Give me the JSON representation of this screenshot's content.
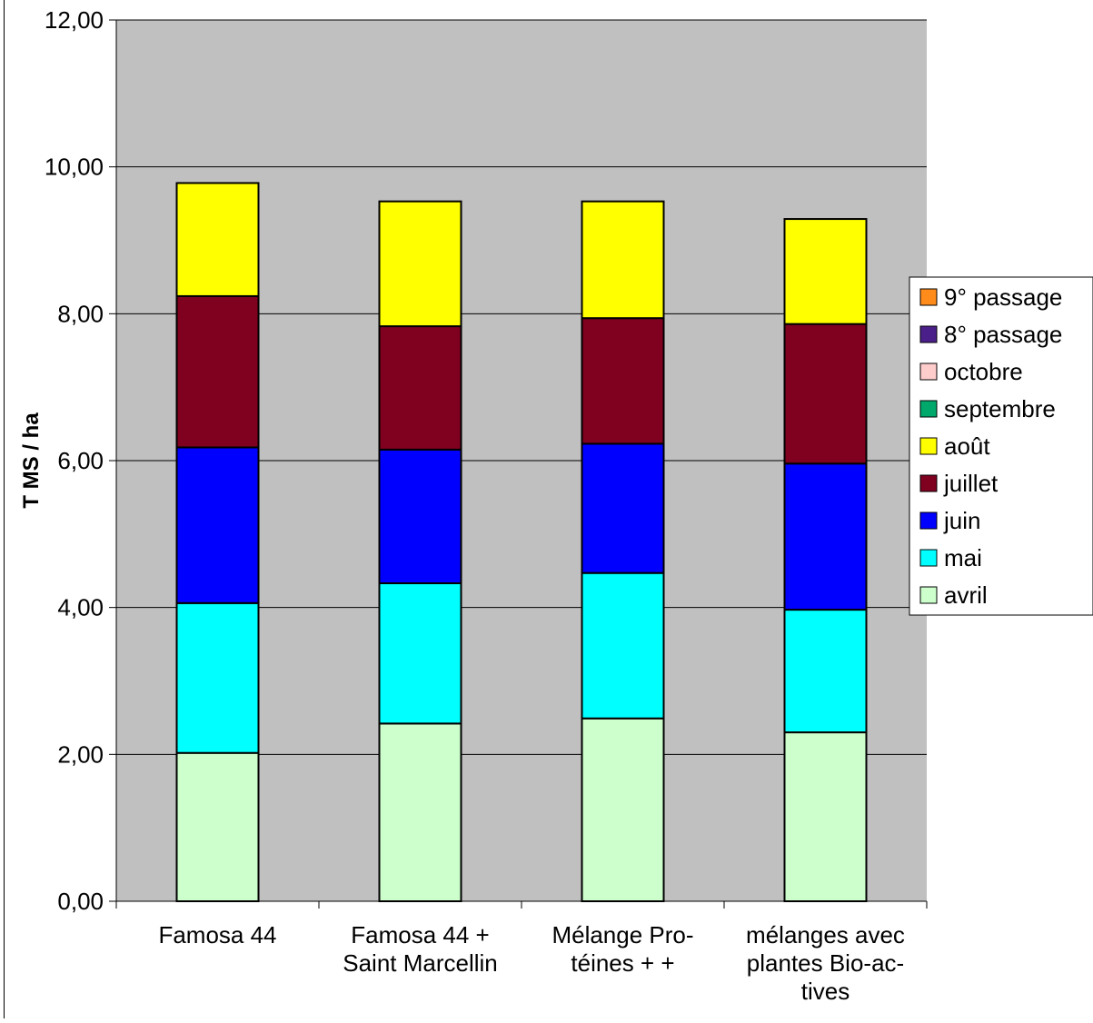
{
  "chart_data": {
    "type": "bar",
    "stacked": true,
    "ylabel": "T MS / ha",
    "xlabel": "",
    "ylim": [
      0,
      12
    ],
    "y_ticks": [
      "0,00",
      "2,00",
      "4,00",
      "6,00",
      "8,00",
      "10,00",
      "12,00"
    ],
    "y_tick_values": [
      0,
      2,
      4,
      6,
      8,
      10,
      12
    ],
    "grid": true,
    "legend_position": "right",
    "plot_background": "#c0c0c0",
    "categories": [
      [
        "Famosa 44"
      ],
      [
        "Famosa 44 +",
        "Saint Marcellin"
      ],
      [
        "Mélange Pro-",
        "téines + +"
      ],
      [
        "mélanges avec",
        "plantes Bio-ac-",
        "tives"
      ]
    ],
    "series": [
      {
        "name": "avril",
        "color": "#ccffcc",
        "values": [
          2.02,
          2.42,
          2.49,
          2.3
        ]
      },
      {
        "name": "mai",
        "color": "#00ffff",
        "values": [
          2.04,
          1.91,
          1.98,
          1.67
        ]
      },
      {
        "name": "juin",
        "color": "#0000ff",
        "values": [
          2.12,
          1.82,
          1.76,
          1.99
        ]
      },
      {
        "name": "juillet",
        "color": "#800020",
        "values": [
          2.06,
          1.68,
          1.71,
          1.9
        ]
      },
      {
        "name": "août",
        "color": "#ffff00",
        "values": [
          1.54,
          1.7,
          1.59,
          1.43
        ]
      },
      {
        "name": "septembre",
        "color": "#00a86b",
        "values": [
          0,
          0,
          0,
          0
        ]
      },
      {
        "name": "octobre",
        "color": "#ffcccc",
        "values": [
          0,
          0,
          0,
          0
        ]
      },
      {
        "name": "8° passage",
        "color": "#4b1f8a",
        "values": [
          0,
          0,
          0,
          0
        ]
      },
      {
        "name": "9° passage",
        "color": "#ff8c1a",
        "values": [
          0,
          0,
          0,
          0
        ]
      }
    ]
  }
}
